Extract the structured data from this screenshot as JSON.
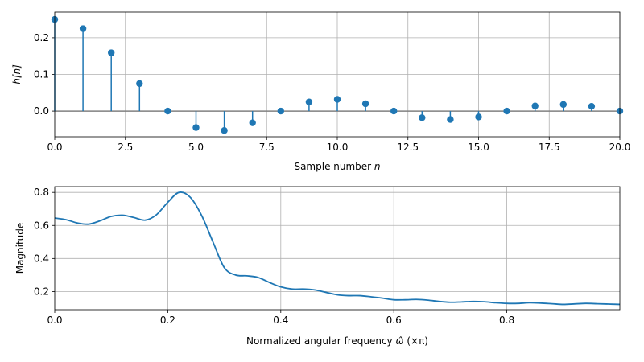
{
  "chart_data": [
    {
      "type": "stem",
      "xlabel": "Sample number",
      "xlabel_var": "n",
      "ylabel": "h[n]",
      "xlim": [
        0,
        20
      ],
      "ylim": [
        -0.07,
        0.27
      ],
      "xticks": [
        "0.0",
        "2.5",
        "5.0",
        "7.5",
        "10.0",
        "12.5",
        "15.0",
        "17.5",
        "20.0"
      ],
      "yticks": [
        "0.0",
        "0.1",
        "0.2"
      ],
      "grid": true,
      "color": "#1f77b4",
      "baseline_color": "#808080",
      "x": [
        0,
        1,
        2,
        3,
        4,
        5,
        6,
        7,
        8,
        9,
        10,
        11,
        12,
        13,
        14,
        15,
        16,
        17,
        18,
        19,
        20
      ],
      "values": [
        0.25,
        0.225,
        0.159,
        0.075,
        0.0,
        -0.045,
        -0.053,
        -0.032,
        0.0,
        0.025,
        0.032,
        0.02,
        0.0,
        -0.018,
        -0.023,
        -0.016,
        0.0,
        0.014,
        0.018,
        0.013,
        0.0
      ]
    },
    {
      "type": "line",
      "xlabel": "Normalized angular frequency",
      "xlabel_suffix": "(×π)",
      "ylabel": "Magnitude",
      "xlim": [
        0,
        1
      ],
      "ylim": [
        0.09,
        0.835
      ],
      "xticks": [
        "0.0",
        "0.2",
        "0.4",
        "0.6",
        "0.8"
      ],
      "yticks": [
        "0.2",
        "0.4",
        "0.6",
        "0.8"
      ],
      "grid": true,
      "color": "#1f77b4",
      "x": [
        0,
        0.02,
        0.04,
        0.06,
        0.08,
        0.1,
        0.12,
        0.14,
        0.16,
        0.18,
        0.2,
        0.22,
        0.24,
        0.26,
        0.28,
        0.3,
        0.32,
        0.34,
        0.36,
        0.38,
        0.4,
        0.42,
        0.44,
        0.46,
        0.48,
        0.5,
        0.52,
        0.54,
        0.56,
        0.58,
        0.6,
        0.62,
        0.64,
        0.66,
        0.68,
        0.7,
        0.72,
        0.74,
        0.76,
        0.78,
        0.8,
        0.82,
        0.84,
        0.86,
        0.88,
        0.9,
        0.92,
        0.94,
        0.96,
        0.98,
        1.0
      ],
      "values": [
        0.645,
        0.635,
        0.615,
        0.608,
        0.628,
        0.655,
        0.662,
        0.648,
        0.632,
        0.665,
        0.74,
        0.8,
        0.77,
        0.66,
        0.5,
        0.345,
        0.3,
        0.295,
        0.285,
        0.255,
        0.228,
        0.215,
        0.215,
        0.21,
        0.195,
        0.18,
        0.175,
        0.175,
        0.168,
        0.16,
        0.15,
        0.15,
        0.152,
        0.148,
        0.14,
        0.135,
        0.137,
        0.14,
        0.138,
        0.132,
        0.128,
        0.128,
        0.132,
        0.13,
        0.126,
        0.122,
        0.125,
        0.128,
        0.126,
        0.124,
        0.122
      ]
    }
  ]
}
